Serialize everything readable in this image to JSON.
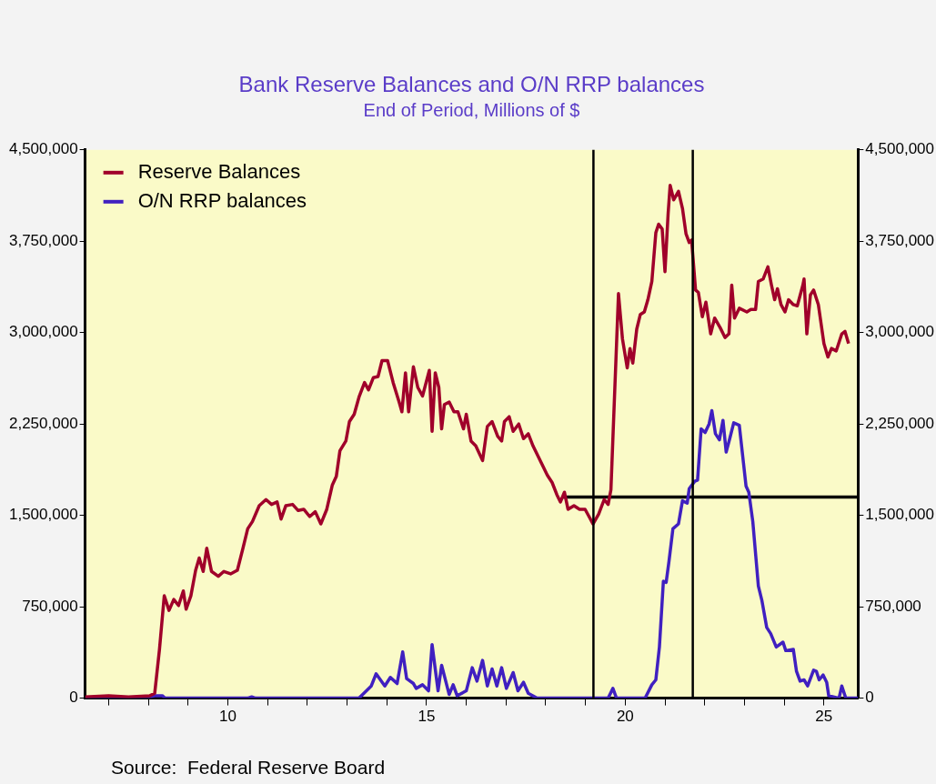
{
  "chart_data": {
    "type": "line",
    "title": "Bank Reserve Balances and O/N RRP balances",
    "subtitle": "End of Period, Millions of $",
    "annotations": [
      "Source:  Federal Reserve Board"
    ],
    "legend": "top left",
    "grid": false,
    "marker": "none",
    "line_style": "solid",
    "xlim": [
      2006.41,
      2025.86
    ],
    "xticks": [
      {
        "value": 2007,
        "label": null
      },
      {
        "value": 2008,
        "label": null
      },
      {
        "value": 2009,
        "label": null
      },
      {
        "value": 2010,
        "label": "10"
      },
      {
        "value": 2011,
        "label": null
      },
      {
        "value": 2012,
        "label": null
      },
      {
        "value": 2013,
        "label": null
      },
      {
        "value": 2014,
        "label": null
      },
      {
        "value": 2015,
        "label": "15"
      },
      {
        "value": 2016,
        "label": null
      },
      {
        "value": 2017,
        "label": null
      },
      {
        "value": 2018,
        "label": null
      },
      {
        "value": 2019,
        "label": null
      },
      {
        "value": 2020,
        "label": "20"
      },
      {
        "value": 2021,
        "label": null
      },
      {
        "value": 2022,
        "label": null
      },
      {
        "value": 2023,
        "label": null
      },
      {
        "value": 2024,
        "label": null
      },
      {
        "value": 2025,
        "label": "25"
      }
    ],
    "ylim": [
      0,
      4500000
    ],
    "yticks": [
      0,
      {
        "value": 750000,
        "label": "750,000"
      },
      {
        "value": 1500000,
        "label": "1,500,000"
      },
      {
        "value": 2250000,
        "label": "2,250,000"
      },
      {
        "value": 3000000,
        "label": "3,000,000"
      },
      {
        "value": 3750000,
        "label": "3,750,000"
      },
      {
        "value": 4500000,
        "label": "4,500,000"
      }
    ],
    "y2lim": [
      0,
      4500000
    ],
    "y2ticks": [
      0,
      {
        "value": 750000,
        "label": "750,000"
      },
      {
        "value": 1500000,
        "label": "1,500,000"
      },
      {
        "value": 2250000,
        "label": "2,250,000"
      },
      {
        "value": 3000000,
        "label": "3,000,000"
      },
      {
        "value": 3750000,
        "label": "3,750,000"
      },
      {
        "value": 4500000,
        "label": "4,500,000"
      }
    ],
    "ref_lines": [
      {
        "axis": "x",
        "value": 2019.2,
        "label": null,
        "color": "#000000"
      },
      {
        "axis": "x",
        "value": 2021.7,
        "label": null,
        "color": "#000000"
      }
    ],
    "series": [
      {
        "name": "Reserve Balances",
        "color": "#a0002a",
        "x": [
          2006.41,
          2007.0,
          2007.5,
          2008.04,
          2008.16,
          2008.28,
          2008.4,
          2008.52,
          2008.64,
          2008.76,
          2008.88,
          2008.95,
          2009.07,
          2009.19,
          2009.28,
          2009.38,
          2009.47,
          2009.59,
          2009.76,
          2009.9,
          2010.07,
          2010.24,
          2010.38,
          2010.5,
          2010.62,
          2010.79,
          2010.96,
          2011.1,
          2011.24,
          2011.34,
          2011.46,
          2011.63,
          2011.77,
          2011.91,
          2012.06,
          2012.2,
          2012.34,
          2012.49,
          2012.63,
          2012.73,
          2012.82,
          2012.97,
          2013.06,
          2013.18,
          2013.3,
          2013.44,
          2013.54,
          2013.66,
          2013.78,
          2013.88,
          2014.02,
          2014.16,
          2014.31,
          2014.38,
          2014.47,
          2014.55,
          2014.67,
          2014.78,
          2014.9,
          2015.07,
          2015.14,
          2015.22,
          2015.31,
          2015.38,
          2015.45,
          2015.57,
          2015.69,
          2015.79,
          2015.93,
          2016.0,
          2016.12,
          2016.24,
          2016.41,
          2016.53,
          2016.65,
          2016.79,
          2016.89,
          2016.96,
          2017.08,
          2017.18,
          2017.32,
          2017.44,
          2017.56,
          2017.68,
          2017.8,
          2017.92,
          2018.04,
          2018.16,
          2018.28,
          2018.37,
          2018.47,
          2018.56,
          2018.71,
          2018.85,
          2018.99,
          2019.09,
          2019.19,
          2019.33,
          2019.47,
          2019.57,
          2019.64,
          2019.83,
          2019.93,
          2020.05,
          2020.12,
          2020.19,
          2020.29,
          2020.38,
          2020.48,
          2020.57,
          2020.67,
          2020.77,
          2020.84,
          2020.93,
          2021.0,
          2021.08,
          2021.13,
          2021.22,
          2021.34,
          2021.44,
          2021.53,
          2021.61,
          2021.67,
          2021.77,
          2021.84,
          2021.94,
          2022.03,
          2022.15,
          2022.25,
          2022.39,
          2022.51,
          2022.61,
          2022.68,
          2022.75,
          2022.87,
          2023.06,
          2023.16,
          2023.28,
          2023.35,
          2023.47,
          2023.59,
          2023.68,
          2023.76,
          2023.83,
          2023.92,
          2024.02,
          2024.11,
          2024.23,
          2024.33,
          2024.47,
          2024.5,
          2024.57,
          2024.66,
          2024.74,
          2024.86,
          2025.0,
          2025.1,
          2025.19,
          2025.31,
          2025.45,
          2025.53,
          2025.62
        ],
        "values": [
          10000,
          20000,
          10000,
          20000,
          40000,
          400000,
          840000,
          720000,
          810000,
          760000,
          880000,
          730000,
          840000,
          1050000,
          1150000,
          1040000,
          1230000,
          1040000,
          1000000,
          1040000,
          1020000,
          1050000,
          1230000,
          1390000,
          1450000,
          1580000,
          1630000,
          1590000,
          1610000,
          1470000,
          1580000,
          1590000,
          1540000,
          1550000,
          1490000,
          1530000,
          1430000,
          1550000,
          1750000,
          1820000,
          2030000,
          2110000,
          2270000,
          2330000,
          2470000,
          2590000,
          2530000,
          2630000,
          2640000,
          2770000,
          2770000,
          2590000,
          2430000,
          2350000,
          2670000,
          2350000,
          2720000,
          2550000,
          2480000,
          2690000,
          2190000,
          2670000,
          2550000,
          2210000,
          2410000,
          2430000,
          2350000,
          2350000,
          2210000,
          2330000,
          2110000,
          2070000,
          1950000,
          2230000,
          2270000,
          2150000,
          2110000,
          2270000,
          2310000,
          2190000,
          2250000,
          2130000,
          2170000,
          2070000,
          1990000,
          1910000,
          1830000,
          1770000,
          1670000,
          1610000,
          1690000,
          1550000,
          1580000,
          1550000,
          1550000,
          1490000,
          1430000,
          1510000,
          1630000,
          1590000,
          1710000,
          3320000,
          2950000,
          2710000,
          2870000,
          2750000,
          3030000,
          3150000,
          3170000,
          3270000,
          3420000,
          3820000,
          3890000,
          3850000,
          3500000,
          3980000,
          4210000,
          4090000,
          4160000,
          4020000,
          3810000,
          3740000,
          3760000,
          3350000,
          3330000,
          3130000,
          3250000,
          2990000,
          3120000,
          3040000,
          2960000,
          2990000,
          3390000,
          3120000,
          3200000,
          3170000,
          3190000,
          3190000,
          3420000,
          3440000,
          3540000,
          3390000,
          3270000,
          3360000,
          3230000,
          3170000,
          3270000,
          3230000,
          3220000,
          3390000,
          3440000,
          2990000,
          3310000,
          3350000,
          3230000,
          2910000,
          2800000,
          2870000,
          2850000,
          2990000,
          3010000,
          2910000
        ]
      },
      {
        "name": "O/N RRP balances",
        "color": "#4020c0",
        "x": [
          2006.41,
          2008.0,
          2008.16,
          2008.35,
          2008.42,
          2010.5,
          2010.6,
          2010.7,
          2013.3,
          2013.61,
          2013.73,
          2013.95,
          2014.09,
          2014.26,
          2014.4,
          2014.5,
          2014.67,
          2014.74,
          2014.9,
          2015.05,
          2015.14,
          2015.29,
          2015.38,
          2015.57,
          2015.67,
          2015.77,
          2016.0,
          2016.15,
          2016.27,
          2016.41,
          2016.53,
          2016.65,
          2016.77,
          2016.89,
          2017.01,
          2017.18,
          2017.3,
          2017.44,
          2017.56,
          2017.78,
          2019.57,
          2019.69,
          2019.78,
          2020.5,
          2020.67,
          2020.77,
          2020.86,
          2020.96,
          2021.03,
          2021.1,
          2021.2,
          2021.34,
          2021.44,
          2021.56,
          2021.61,
          2021.75,
          2021.82,
          2021.91,
          2022.01,
          2022.11,
          2022.18,
          2022.27,
          2022.37,
          2022.46,
          2022.54,
          2022.63,
          2022.73,
          2022.87,
          2023.04,
          2023.11,
          2023.21,
          2023.35,
          2023.44,
          2023.56,
          2023.66,
          2023.8,
          2023.97,
          2024.04,
          2024.23,
          2024.31,
          2024.4,
          2024.5,
          2024.59,
          2024.74,
          2024.81,
          2024.88,
          2024.98,
          2025.07,
          2025.12,
          2025.38,
          2025.45,
          2025.55,
          2025.86
        ],
        "values": [
          0,
          0,
          20000,
          20000,
          0,
          0,
          10000,
          0,
          0,
          100000,
          200000,
          100000,
          170000,
          120000,
          380000,
          160000,
          120000,
          80000,
          110000,
          60000,
          440000,
          60000,
          270000,
          30000,
          110000,
          20000,
          60000,
          250000,
          140000,
          310000,
          100000,
          240000,
          100000,
          250000,
          80000,
          210000,
          60000,
          130000,
          40000,
          0,
          0,
          80000,
          0,
          0,
          110000,
          150000,
          420000,
          960000,
          950000,
          1120000,
          1390000,
          1430000,
          1620000,
          1600000,
          1720000,
          1780000,
          1790000,
          2210000,
          2180000,
          2250000,
          2360000,
          2170000,
          2120000,
          2280000,
          2020000,
          2130000,
          2260000,
          2240000,
          1740000,
          1690000,
          1450000,
          920000,
          800000,
          580000,
          530000,
          420000,
          460000,
          390000,
          400000,
          220000,
          140000,
          150000,
          100000,
          230000,
          220000,
          150000,
          190000,
          130000,
          20000,
          0,
          100000,
          0,
          0
        ]
      },
      {
        "color": "#000000",
        "x": [
          2018.42,
          2025.86
        ],
        "values": [
          1650000,
          1650000
        ]
      }
    ]
  }
}
